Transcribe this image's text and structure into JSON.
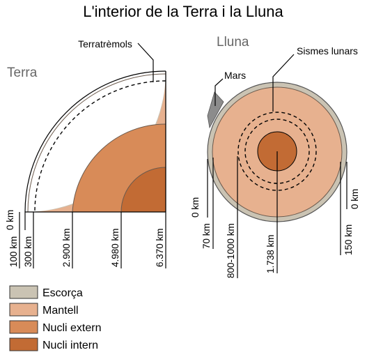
{
  "title": "L'interior de la Terra i la Lluna",
  "colors": {
    "crust": "#cac3b3",
    "mantle": "#e7b18f",
    "outer_core": "#d88b58",
    "inner_core": "#c26b34",
    "mars_impactor": "#8c8c8c"
  },
  "earth": {
    "name": "Terra",
    "quake_label": "Terratrèmols",
    "depths": [
      "0 km",
      "100 km",
      "300 km",
      "2.900 km",
      "4.980 km",
      "6.370 km"
    ]
  },
  "moon": {
    "name": "Lluna",
    "impactor_label": "Mars",
    "quake_label": "Sismes lunars",
    "depths_left": [
      "0 km",
      "70 km",
      "800-1000 km",
      "1.738 km"
    ],
    "depths_right": [
      "0 km",
      "150 km"
    ]
  },
  "legend": [
    {
      "label": "Escorça",
      "color": "#cac3b3"
    },
    {
      "label": "Mantell",
      "color": "#e7b18f"
    },
    {
      "label": "Nucli extern",
      "color": "#d88b58"
    },
    {
      "label": "Nucli intern",
      "color": "#c26b34"
    }
  ]
}
